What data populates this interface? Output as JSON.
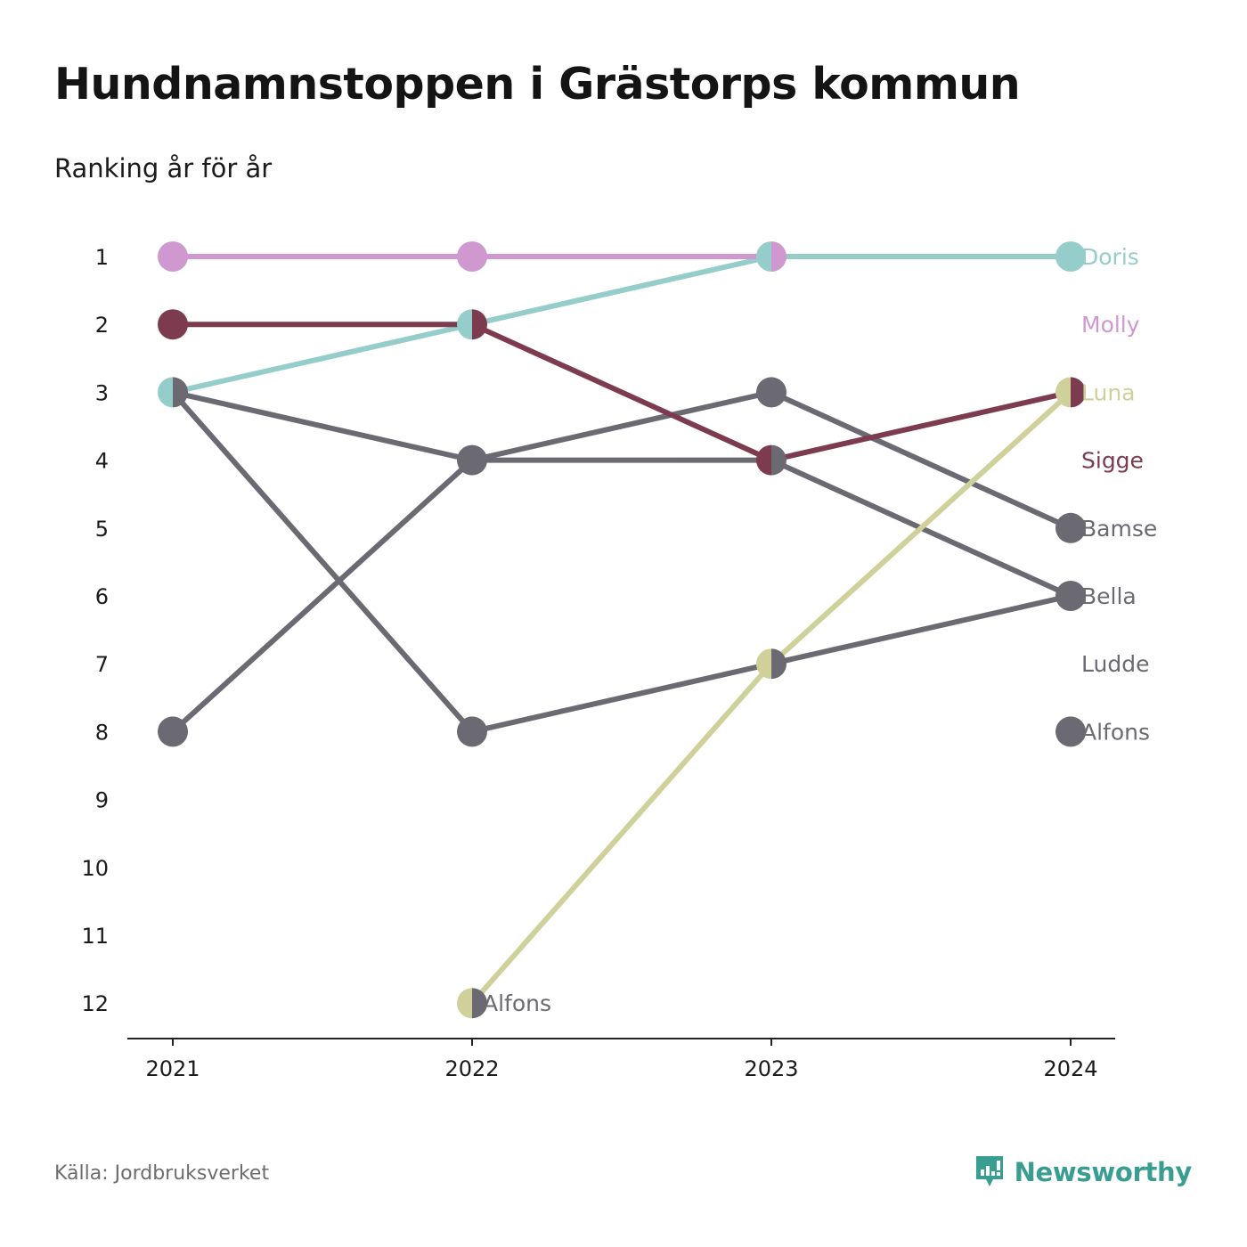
{
  "title": "Hundnamnstoppen i Grästorps kommun",
  "subtitle": "Ranking år för år",
  "source": "Källa: Jordbruksverket",
  "brand": {
    "name": "Newsworthy",
    "icon": "newsworthy-logo-icon",
    "color": "#3a9d91"
  },
  "chart_data": {
    "type": "line",
    "x": [
      "2021",
      "2022",
      "2023",
      "2024"
    ],
    "y_ticks": [
      1,
      2,
      3,
      4,
      5,
      6,
      7,
      8,
      9,
      10,
      11,
      12
    ],
    "y_inverted": true,
    "ylim": [
      1,
      12
    ],
    "grid": false,
    "series": [
      {
        "name": "Doris",
        "color": "#95cdca",
        "values": [
          3,
          2,
          1,
          1
        ]
      },
      {
        "name": "Molly",
        "color": "#cf98d0",
        "values": [
          1,
          1,
          1,
          null
        ]
      },
      {
        "name": "Luna",
        "color": "#cfd09a",
        "values": [
          null,
          12,
          7,
          3
        ]
      },
      {
        "name": "Sigge",
        "color": "#7c3b4f",
        "values": [
          2,
          2,
          4,
          3
        ]
      },
      {
        "name": "Bamse",
        "color": "#6b6a73",
        "values": [
          8,
          4,
          3,
          5
        ]
      },
      {
        "name": "Bella",
        "color": "#6b6a73",
        "values": [
          3,
          4,
          4,
          6
        ]
      },
      {
        "name": "Ludde",
        "color": "#6b6a73",
        "values": [
          3,
          8,
          7,
          6
        ]
      },
      {
        "name": "Alfons",
        "color": "#6b6a73",
        "values": [
          null,
          12,
          null,
          8
        ]
      }
    ],
    "end_labels": [
      {
        "text": "Doris",
        "rank": 1,
        "color": "#95cdca"
      },
      {
        "text": "Molly",
        "rank": 2,
        "color": "#cf98d0"
      },
      {
        "text": "Luna",
        "rank": 3,
        "color": "#cfd09a"
      },
      {
        "text": "Sigge",
        "rank": 4,
        "color": "#7c3b4f"
      },
      {
        "text": "Bamse",
        "rank": 5,
        "color": "#6b6a73"
      },
      {
        "text": "Bella",
        "rank": 6,
        "color": "#6b6a73"
      },
      {
        "text": "Ludde",
        "rank": 7,
        "color": "#6b6a73"
      },
      {
        "text": "Alfons",
        "rank": 8,
        "color": "#6b6a73"
      }
    ],
    "inline_labels": [
      {
        "text": "Alfons",
        "x": "2022",
        "rank": 12,
        "color": "#6b6a73"
      }
    ]
  }
}
